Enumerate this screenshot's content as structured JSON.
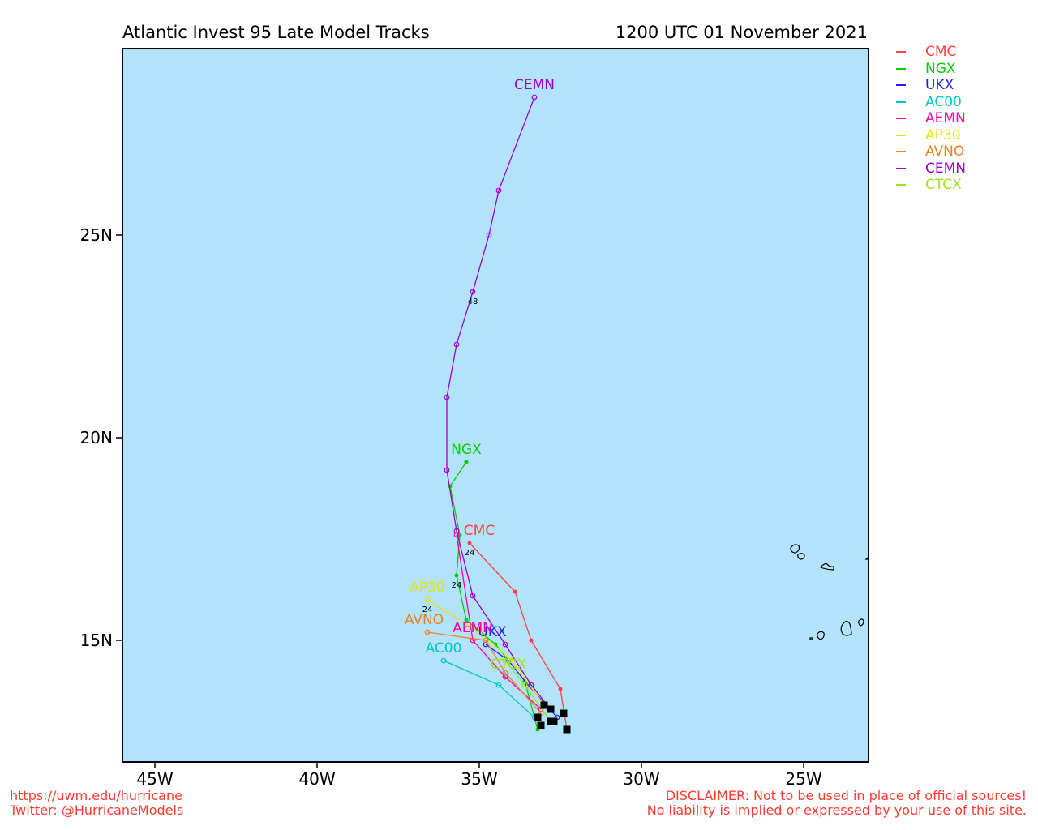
{
  "title_left": "Atlantic Invest 95 Late Model Tracks",
  "title_right": "1200 UTC 01 November 2021",
  "map": {
    "ocean_color": "#b3e2fb",
    "lon_range": [
      -46,
      -23
    ],
    "lat_range": [
      12,
      29.6
    ],
    "x_ticks": [
      {
        "lon": -45,
        "label": "45W"
      },
      {
        "lon": -40,
        "label": "40W"
      },
      {
        "lon": -35,
        "label": "35W"
      },
      {
        "lon": -30,
        "label": "30W"
      },
      {
        "lon": -25,
        "label": "25W"
      }
    ],
    "y_ticks": [
      {
        "lat": 15,
        "label": "15N"
      },
      {
        "lat": 20,
        "label": "20N"
      },
      {
        "lat": 25,
        "label": "25N"
      }
    ]
  },
  "tracks": [
    {
      "name": "CMC",
      "color": "#ff4040",
      "marker": "dot",
      "points": [
        [
          -32.3,
          12.8
        ],
        [
          -32.5,
          13.8
        ],
        [
          -33.4,
          15.0
        ],
        [
          -33.9,
          16.2
        ],
        [
          -35.3,
          17.4
        ]
      ],
      "hour_labels": [
        {
          "index": 4,
          "text": "24"
        }
      ]
    },
    {
      "name": "NGX",
      "color": "#00d000",
      "marker": "dot",
      "points": [
        [
          -33.2,
          12.8
        ],
        [
          -33.6,
          14.0
        ],
        [
          -34.5,
          14.9
        ],
        [
          -35.4,
          15.5
        ],
        [
          -35.7,
          16.6
        ],
        [
          -35.6,
          17.6
        ],
        [
          -35.9,
          18.8
        ],
        [
          -35.4,
          19.4
        ]
      ],
      "hour_labels": [
        {
          "index": 4,
          "text": "24"
        }
      ]
    },
    {
      "name": "UKX",
      "color": "#2020ff",
      "marker": "circle",
      "points": [
        [
          -32.6,
          13.1
        ],
        [
          -33.5,
          13.9
        ],
        [
          -34.1,
          14.5
        ],
        [
          -34.8,
          14.9
        ]
      ],
      "hour_labels": []
    },
    {
      "name": "AC00",
      "color": "#00c8c8",
      "marker": "circle",
      "points": [
        [
          -33.3,
          13.1
        ],
        [
          -34.4,
          13.9
        ],
        [
          -36.1,
          14.5
        ]
      ],
      "hour_labels": []
    },
    {
      "name": "AEMN",
      "color": "#ff00a0",
      "marker": "circle",
      "points": [
        [
          -33.1,
          13.3
        ],
        [
          -34.2,
          14.1
        ],
        [
          -35.2,
          15.0
        ],
        [
          -35.7,
          17.6
        ]
      ],
      "hour_labels": []
    },
    {
      "name": "AP30",
      "color": "#e6e600",
      "marker": "circle",
      "points": [
        [
          -33.0,
          13.4
        ],
        [
          -34.0,
          14.5
        ],
        [
          -35.0,
          15.2
        ],
        [
          -36.6,
          16.0
        ]
      ],
      "hour_labels": [
        {
          "index": 3,
          "text": "24"
        }
      ]
    },
    {
      "name": "AVNO",
      "color": "#f08020",
      "marker": "circle",
      "points": [
        [
          -33.1,
          13.2
        ],
        [
          -34.2,
          14.2
        ],
        [
          -34.8,
          15.0
        ],
        [
          -36.6,
          15.2
        ]
      ],
      "hour_labels": []
    },
    {
      "name": "CEMN",
      "color": "#a000d0",
      "marker": "circle",
      "points": [
        [
          -32.8,
          13.3
        ],
        [
          -33.4,
          13.9
        ],
        [
          -34.2,
          14.9
        ],
        [
          -35.2,
          16.1
        ],
        [
          -35.7,
          17.7
        ],
        [
          -36.0,
          19.2
        ],
        [
          -36.0,
          21.0
        ],
        [
          -35.7,
          22.3
        ],
        [
          -35.2,
          23.6
        ],
        [
          -34.7,
          25.0
        ],
        [
          -34.4,
          26.1
        ],
        [
          -33.3,
          28.4
        ]
      ],
      "hour_labels": [
        {
          "index": 8,
          "text": "48"
        }
      ]
    },
    {
      "name": "CTCX",
      "color": "#a0e020",
      "marker": "circle",
      "points": [
        [
          -32.8,
          13.0
        ],
        [
          -33.6,
          13.9
        ],
        [
          -34.2,
          14.5
        ]
      ],
      "hour_labels": []
    }
  ],
  "track_label_positions": {
    "CMC": [
      -35.0,
      17.6
    ],
    "NGX": [
      -35.4,
      19.6
    ],
    "UKX": [
      -34.6,
      15.1
    ],
    "AC00": [
      -36.1,
      14.7
    ],
    "AEMN": [
      -35.2,
      15.2
    ],
    "AP30": [
      -36.6,
      16.2
    ],
    "AVNO": [
      -36.7,
      15.4
    ],
    "CEMN": [
      -33.3,
      28.6
    ],
    "CTCX": [
      -34.1,
      14.3
    ]
  },
  "start_markers": [
    [
      -32.3,
      12.8
    ],
    [
      -32.4,
      13.2
    ],
    [
      -32.8,
      13.3
    ],
    [
      -33.0,
      13.4
    ],
    [
      -33.2,
      13.1
    ],
    [
      -33.1,
      12.9
    ],
    [
      -32.8,
      13.0
    ],
    [
      -32.7,
      13.0
    ]
  ],
  "land_color": "#000000",
  "footer": {
    "left_line1": "https://uwm.edu/hurricane",
    "left_line2": "Twitter: @HurricaneModels",
    "right_line1": "DISCLAIMER: Not to be used in place of official sources!",
    "right_line2": "No liability is implied or expressed by your use of this site."
  }
}
